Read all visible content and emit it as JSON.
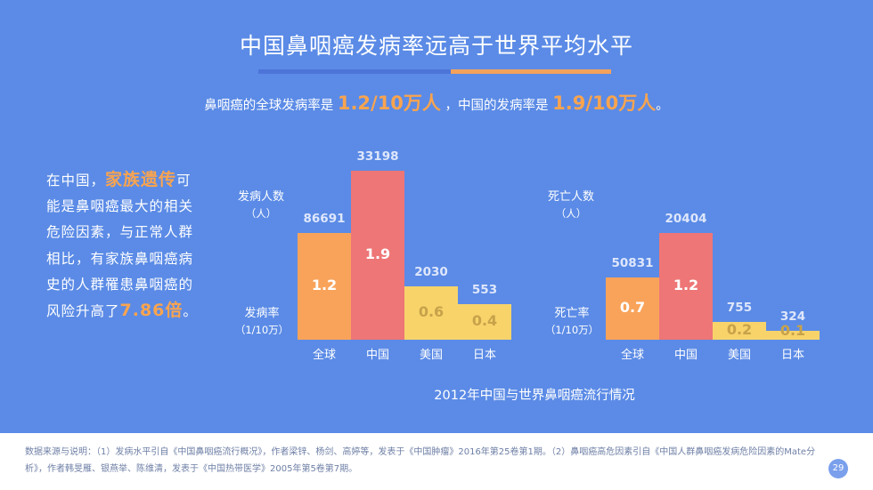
{
  "title": "中国鼻咽癌发病率远高于世界平均水平",
  "subtitle": {
    "part1": "鼻咽癌的全球发病率是 ",
    "global_rate": "1.2/10万人",
    "part2": " ，中国的发病率是 ",
    "china_rate": "1.9/10万人",
    "part3": "。"
  },
  "left_text": {
    "part1": "在中国，",
    "highlight1": "家族遗传",
    "part2": "可能是鼻咽癌最大的相关危险因素，与正常人群相比，有家族鼻咽癌病史的人群罹患鼻咽癌的风险升高了",
    "highlight2": "7.86倍",
    "part3": "。"
  },
  "colors": {
    "background": "#5b8be6",
    "orange_bar": "#f9a35a",
    "red_bar": "#ee7676",
    "yellow_bar": "#f7d36a",
    "highlight": "#f9a44f"
  },
  "chart_data": [
    {
      "type": "bar",
      "title": "",
      "categories": [
        "全球",
        "中国",
        "美国",
        "日本"
      ],
      "series": [
        {
          "name": "发病人数",
          "values": [
            86691,
            33198,
            2030,
            553
          ]
        },
        {
          "name": "发病率",
          "values": [
            1.2,
            1.9,
            0.6,
            0.4
          ]
        }
      ],
      "count_labels": [
        "86691",
        "33198",
        "2030",
        "553"
      ],
      "rate_labels": [
        "1.2",
        "1.9",
        "0.6",
        "0.4"
      ],
      "ylabel_top": "发病人数",
      "ylabel_top_unit": "（人）",
      "ylabel_bottom": "发病率",
      "ylabel_bottom_unit": "（1/10万）"
    },
    {
      "type": "bar",
      "title": "",
      "categories": [
        "全球",
        "中国",
        "美国",
        "日本"
      ],
      "series": [
        {
          "name": "死亡人数",
          "values": [
            50831,
            20404,
            755,
            324
          ]
        },
        {
          "name": "死亡率",
          "values": [
            0.7,
            1.2,
            0.2,
            0.1
          ]
        }
      ],
      "count_labels": [
        "50831",
        "20404",
        "755",
        "324"
      ],
      "rate_labels": [
        "0.7",
        "1.2",
        "0.2",
        "0.1"
      ],
      "ylabel_top": "死亡人数",
      "ylabel_top_unit": "（人）",
      "ylabel_bottom": "死亡率",
      "ylabel_bottom_unit": "（1/10万）"
    }
  ],
  "caption": "2012年中国与世界鼻咽癌流行情况",
  "footer": {
    "text": "数据来源与说明：（1）发病水平引自《中国鼻咽癌流行概况》，作者梁锌、杨剑、高婷等，发表于《中国肿瘤》2016年第25卷第1期。（2）鼻咽癌高危因素引自《中国人群鼻咽癌发病危险因素的Mate分析》，作者韩旻雁、银燕举、陈维清，发表于《中国热带医学》2005年第5卷第7期。",
    "page_number": "29"
  }
}
